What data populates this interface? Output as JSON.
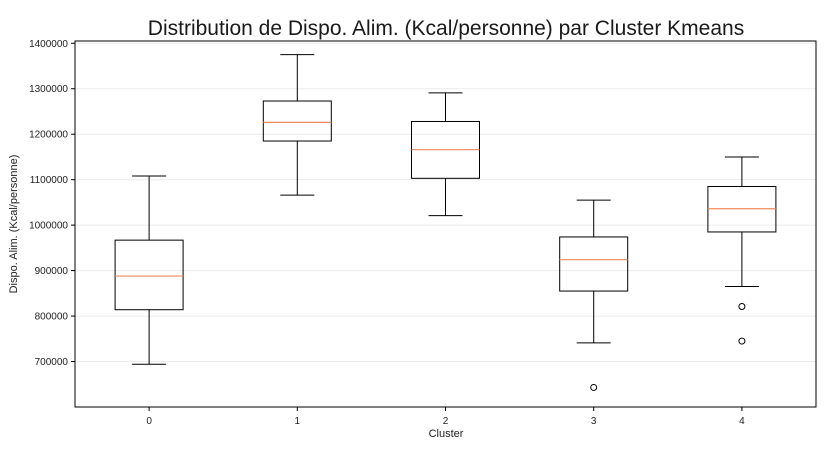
{
  "chart_data": {
    "type": "box",
    "title": "Distribution de Dispo. Alim. (Kcal/personne) par Cluster Kmeans",
    "xlabel": "Cluster",
    "ylabel": "Dispo. Alim. (Kcal/personne)",
    "ylim": [
      600000,
      1405000
    ],
    "y_ticks": [
      700000,
      800000,
      900000,
      1000000,
      1100000,
      1200000,
      1300000,
      1400000
    ],
    "y_tick_labels": [
      "700000",
      "800000",
      "900000",
      "1000000",
      "1100000",
      "1200000",
      "1300000",
      "1400000"
    ],
    "grid": true,
    "categories": [
      "0",
      "1",
      "2",
      "3",
      "4"
    ],
    "boxes": [
      {
        "category": "0",
        "whisker_low": 694000,
        "q1": 814000,
        "median": 888000,
        "q3": 967000,
        "whisker_high": 1108000,
        "outliers": []
      },
      {
        "category": "1",
        "whisker_low": 1066000,
        "q1": 1185000,
        "median": 1226000,
        "q3": 1273000,
        "whisker_high": 1375000,
        "outliers": []
      },
      {
        "category": "2",
        "whisker_low": 1021000,
        "q1": 1103000,
        "median": 1166000,
        "q3": 1228000,
        "whisker_high": 1291000,
        "outliers": []
      },
      {
        "category": "3",
        "whisker_low": 741000,
        "q1": 855000,
        "median": 924000,
        "q3": 974000,
        "whisker_high": 1055000,
        "outliers": [
          643000
        ]
      },
      {
        "category": "4",
        "whisker_low": 865000,
        "q1": 985000,
        "median": 1036000,
        "q3": 1085000,
        "whisker_high": 1150000,
        "outliers": [
          821000,
          745000
        ]
      }
    ],
    "colors": {
      "box": "#000000",
      "median": "#f08a5d",
      "grid": "#ececec",
      "axes": "#000000"
    }
  }
}
